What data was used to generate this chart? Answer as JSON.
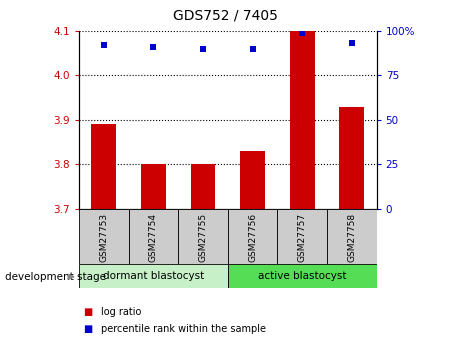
{
  "title": "GDS752 / 7405",
  "samples": [
    "GSM27753",
    "GSM27754",
    "GSM27755",
    "GSM27756",
    "GSM27757",
    "GSM27758"
  ],
  "log_ratio": [
    3.89,
    3.8,
    3.8,
    3.83,
    4.1,
    3.93
  ],
  "percentile_rank": [
    92,
    91,
    90,
    90,
    99,
    93
  ],
  "ylim_left": [
    3.7,
    4.1
  ],
  "ylim_right": [
    0,
    100
  ],
  "yticks_left": [
    3.7,
    3.8,
    3.9,
    4.0,
    4.1
  ],
  "yticks_right": [
    0,
    25,
    50,
    75,
    100
  ],
  "bar_color": "#cc0000",
  "dot_color": "#0000cc",
  "group1_label": "dormant blastocyst",
  "group2_label": "active blastocyst",
  "group1_color": "#c8f0c8",
  "group2_color": "#55dd55",
  "tick_label_color_left": "#cc0000",
  "tick_label_color_right": "#0000cc",
  "bar_width": 0.5,
  "sample_box_color": "#cccccc",
  "legend_label_bar": "log ratio",
  "legend_label_dot": "percentile rank within the sample",
  "dev_stage_label": "development stage",
  "arrow_color": "#888888",
  "background_color": "#ffffff"
}
